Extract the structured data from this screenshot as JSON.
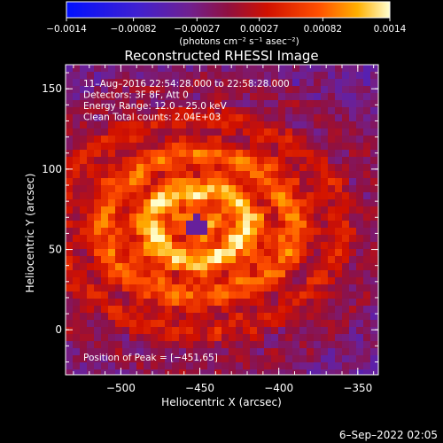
{
  "chart_data": {
    "type": "heatmap",
    "title": "Reconstructed RHESSI Image",
    "xlabel": "Heliocentric X (arcsec)",
    "ylabel": "Heliocentric Y (arcsec)",
    "xlim": [
      -535,
      -337
    ],
    "ylim": [
      -28,
      165
    ],
    "x_ticks": [
      -500,
      -450,
      -400,
      -350
    ],
    "x_tick_labels": [
      "−500",
      "−450",
      "−400",
      "−350"
    ],
    "y_ticks": [
      0,
      50,
      100,
      150
    ],
    "y_tick_labels": [
      "0",
      "50",
      "100",
      "150"
    ],
    "peak": [
      -451,
      65
    ],
    "colorbar": {
      "min": -0.0014,
      "max": 0.0014,
      "ticks": [
        -0.0014,
        -0.00082,
        -0.00027,
        0.00027,
        0.00082,
        0.0014
      ],
      "tick_labels": [
        "−0.0014",
        "−0.00082",
        "−0.00027",
        "0.00027",
        "0.00082",
        "0.0014"
      ],
      "units_label": "(photons cm⁻² s⁻¹ asec⁻²)"
    },
    "annotations": [
      "11–Aug–2016 22:54:28.000 to 22:58:28.000",
      "Detectors: 3F 8F, Att 0",
      "Energy Range: 12.0 – 25.0 keV",
      "Clean    Total counts: 2.04E+03"
    ],
    "peak_label": "Position of Peak = [−451,65]",
    "grid": false
  },
  "footer": {
    "date": "6–Sep–2022 02:05"
  }
}
